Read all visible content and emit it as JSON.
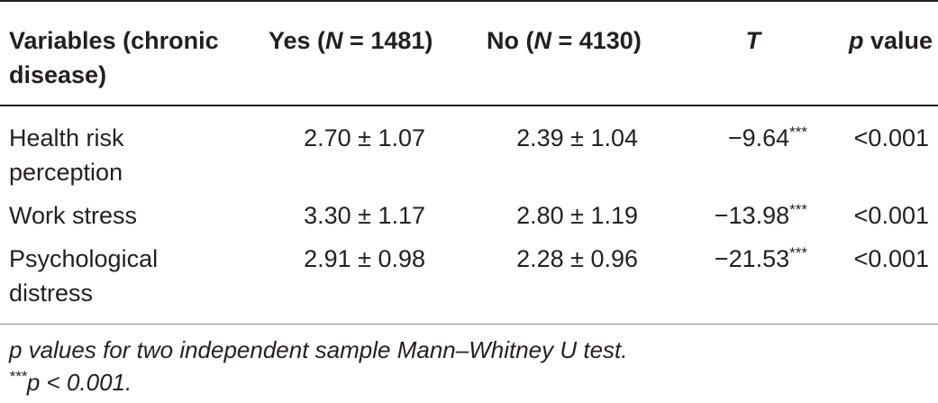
{
  "table": {
    "headers": {
      "variables": "Variables (chronic disease)",
      "yes_pre": "Yes (",
      "yes_n": "N",
      "yes_post": " = 1481)",
      "no_pre": "No (",
      "no_n": "N",
      "no_post": " = 4130)",
      "t": "T",
      "p_italic": "p",
      "p_rest": " value"
    },
    "rows": [
      {
        "variable": "Health risk perception",
        "yes": "2.70 ± 1.07",
        "no": "2.39 ± 1.04",
        "t": "−9.64",
        "t_mark": "***",
        "p": "<0.001"
      },
      {
        "variable": "Work stress",
        "yes": "3.30 ± 1.17",
        "no": "2.80 ± 1.19",
        "t": "−13.98",
        "t_mark": "***",
        "p": "<0.001"
      },
      {
        "variable": "Psychological distress",
        "yes": "2.91 ± 0.98",
        "no": "2.28 ± 0.96",
        "t": "−21.53",
        "t_mark": "***",
        "p": "<0.001"
      }
    ],
    "footnotes": {
      "note1": "p values for two independent sample Mann–Whitney U test.",
      "note2_mark": "***",
      "note2": "p < 0.001."
    }
  }
}
